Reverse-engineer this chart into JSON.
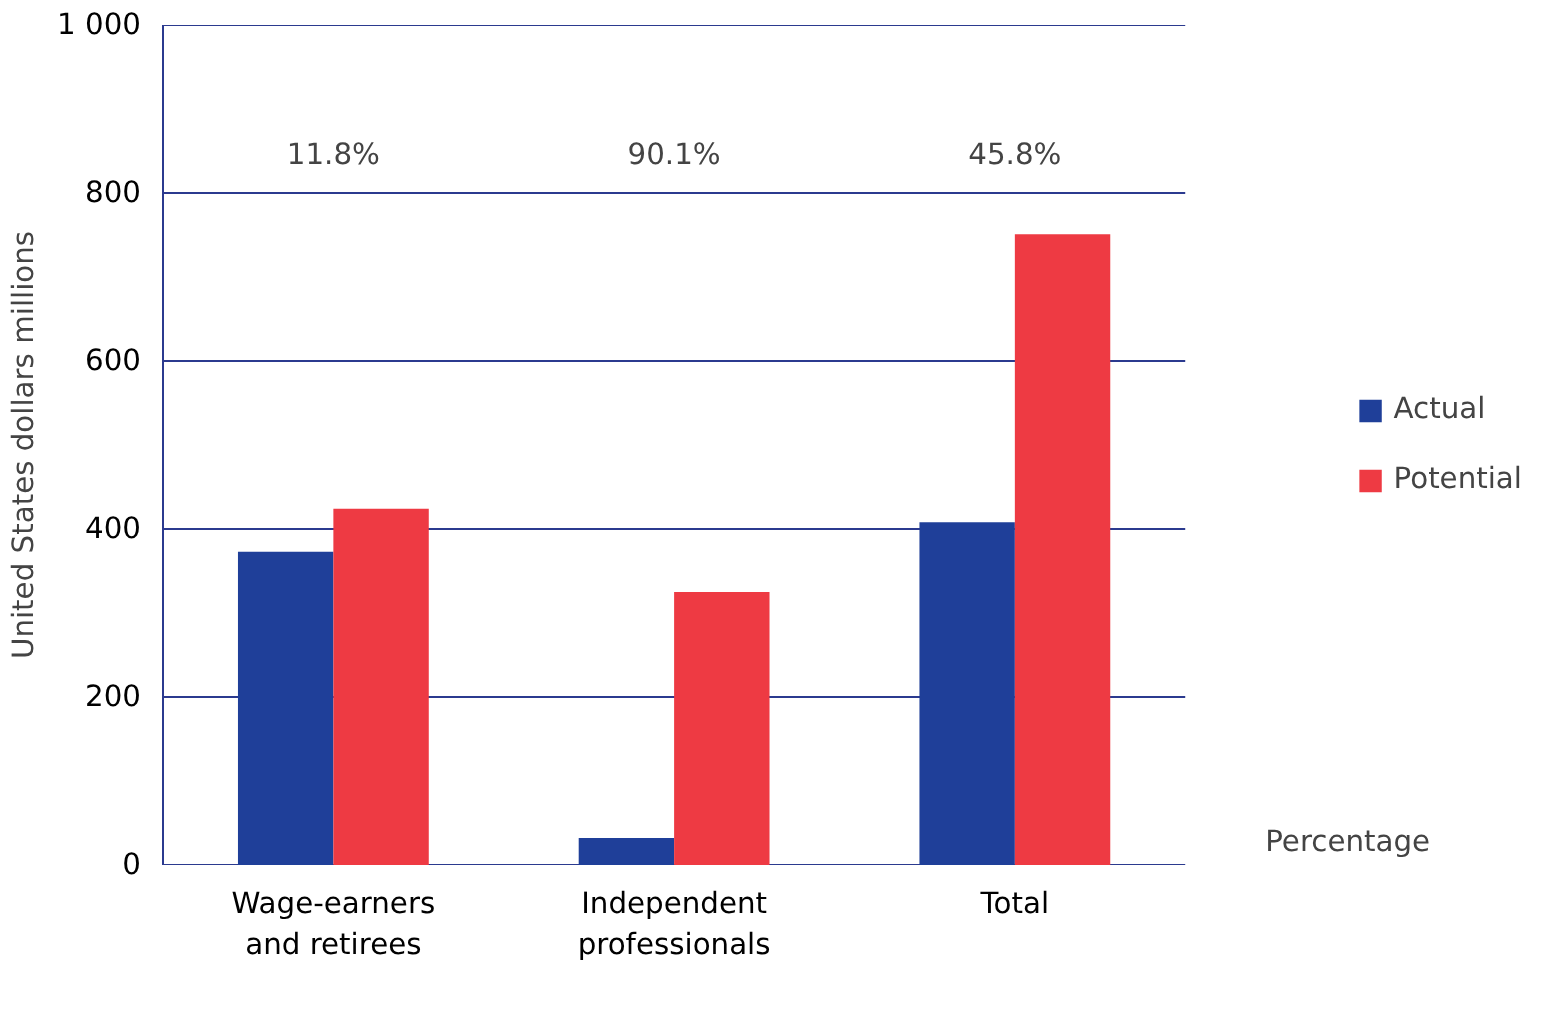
{
  "chart_data": {
    "type": "bar",
    "ylabel": "United States dollars millions",
    "categories": [
      "Wage-earners and retirees",
      "Independent professionals",
      "Total"
    ],
    "series": [
      {
        "name": "Actual",
        "color": "#1f3f99",
        "values": [
          373,
          32,
          408
        ]
      },
      {
        "name": "Potential",
        "color": "#ee3a43",
        "values": [
          424,
          325,
          751
        ]
      }
    ],
    "ylim": [
      0,
      1000
    ],
    "yticks": [
      0,
      200,
      400,
      600,
      800,
      {
        "value": 1000,
        "label": "1 000"
      }
    ],
    "grid": "y",
    "legend": "right",
    "annotations": [
      "11.8%",
      "90.1%",
      "45.8%",
      "Percentage"
    ]
  }
}
